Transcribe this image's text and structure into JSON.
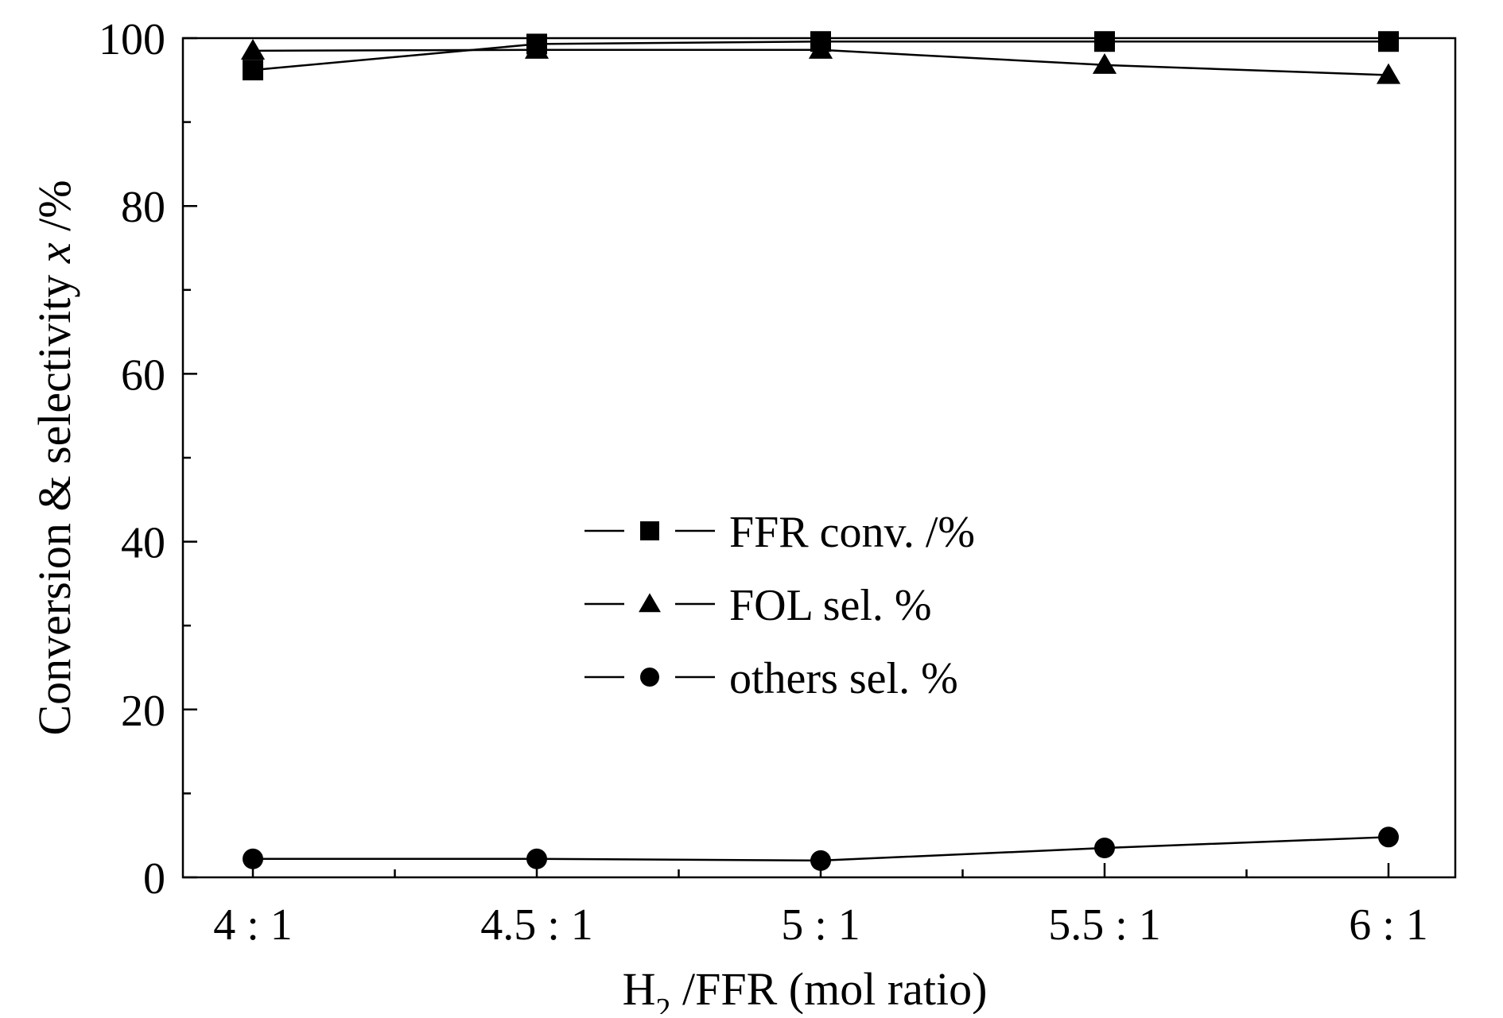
{
  "chart_data": {
    "type": "line",
    "categories": [
      "4 : 1",
      "4.5 : 1",
      "5 : 1",
      "5.5 : 1",
      "6 : 1"
    ],
    "xlabel": {
      "main": "H",
      "sub": "2",
      "rest": " /FFR (mol ratio)"
    },
    "ylabel": {
      "main": "Conversion & selectivity ",
      "italic": "x",
      "rest": " /%"
    },
    "ylim": [
      0,
      100
    ],
    "yticks": [
      "0",
      "20",
      "40",
      "60",
      "80",
      "100"
    ],
    "grid": false,
    "legend_position": "center",
    "series": [
      {
        "name": "FFR conv. /%",
        "marker": "square",
        "color": "#000000",
        "values": [
          96.2,
          99.3,
          99.6,
          99.6,
          99.6
        ]
      },
      {
        "name": "FOL sel. %",
        "marker": "triangle",
        "color": "#000000",
        "values": [
          98.5,
          98.6,
          98.6,
          96.8,
          95.6
        ]
      },
      {
        "name": "others sel. %",
        "marker": "circle",
        "color": "#000000",
        "values": [
          2.2,
          2.2,
          2.0,
          3.5,
          4.8
        ]
      }
    ]
  }
}
